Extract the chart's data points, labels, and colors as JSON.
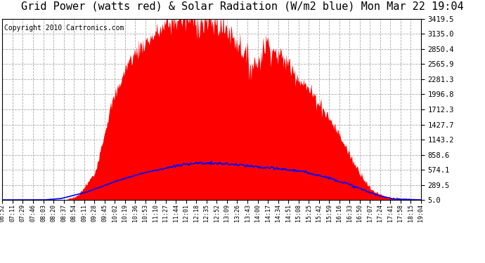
{
  "title": "Grid Power (watts red) & Solar Radiation (W/m2 blue) Mon Mar 22 19:04",
  "copyright": "Copyright 2010 Cartronics.com",
  "yticks": [
    5.0,
    289.5,
    574.1,
    858.6,
    1143.2,
    1427.7,
    1712.3,
    1996.8,
    2281.3,
    2565.9,
    2850.4,
    3135.0,
    3419.5
  ],
  "ymin": 5.0,
  "ymax": 3419.5,
  "bg_color": "#ffffff",
  "grid_color": "#aaaaaa",
  "fill_color": "#ff0000",
  "line_color": "#0000ff",
  "title_fontsize": 11,
  "copyright_fontsize": 7,
  "xtick_fontsize": 6,
  "ytick_fontsize": 7.5,
  "x_labels": [
    "06:52",
    "07:11",
    "07:29",
    "07:46",
    "08:03",
    "08:20",
    "08:37",
    "08:54",
    "09:11",
    "09:28",
    "09:45",
    "10:02",
    "10:19",
    "10:36",
    "10:53",
    "11:10",
    "11:27",
    "11:44",
    "12:01",
    "12:18",
    "12:35",
    "12:52",
    "13:09",
    "13:26",
    "13:43",
    "14:00",
    "14:17",
    "14:34",
    "14:51",
    "15:08",
    "15:25",
    "15:42",
    "15:59",
    "16:16",
    "16:33",
    "16:50",
    "17:07",
    "17:24",
    "17:41",
    "17:58",
    "18:15",
    "19:04"
  ]
}
